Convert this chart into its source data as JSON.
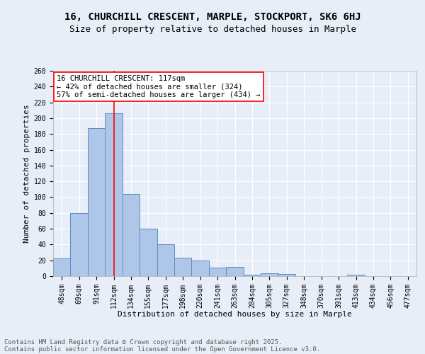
{
  "title_line1": "16, CHURCHILL CRESCENT, MARPLE, STOCKPORT, SK6 6HJ",
  "title_line2": "Size of property relative to detached houses in Marple",
  "xlabel": "Distribution of detached houses by size in Marple",
  "ylabel": "Number of detached properties",
  "categories": [
    "48sqm",
    "69sqm",
    "91sqm",
    "112sqm",
    "134sqm",
    "155sqm",
    "177sqm",
    "198sqm",
    "220sqm",
    "241sqm",
    "263sqm",
    "284sqm",
    "305sqm",
    "327sqm",
    "348sqm",
    "370sqm",
    "391sqm",
    "413sqm",
    "434sqm",
    "456sqm",
    "477sqm"
  ],
  "values": [
    22,
    80,
    187,
    206,
    104,
    60,
    40,
    23,
    20,
    11,
    12,
    2,
    4,
    3,
    0,
    0,
    0,
    2,
    0,
    0,
    0
  ],
  "bar_color": "#aec6e8",
  "bar_edge_color": "#5a8fc2",
  "vline_color": "red",
  "vline_pos": 3.0,
  "annotation_text": "16 CHURCHILL CRESCENT: 117sqm\n← 42% of detached houses are smaller (324)\n57% of semi-detached houses are larger (434) →",
  "annotation_box_color": "white",
  "annotation_box_edge": "red",
  "ylim": [
    0,
    260
  ],
  "yticks": [
    0,
    20,
    40,
    60,
    80,
    100,
    120,
    140,
    160,
    180,
    200,
    220,
    240,
    260
  ],
  "footer_line1": "Contains HM Land Registry data © Crown copyright and database right 2025.",
  "footer_line2": "Contains public sector information licensed under the Open Government Licence v3.0.",
  "bg_color": "#e8eef7",
  "plot_bg_color": "#e8eef7",
  "grid_color": "white",
  "title_fontsize": 10,
  "subtitle_fontsize": 9,
  "axis_label_fontsize": 8,
  "tick_fontsize": 7,
  "footer_fontsize": 6.5,
  "annotation_fontsize": 7.5
}
